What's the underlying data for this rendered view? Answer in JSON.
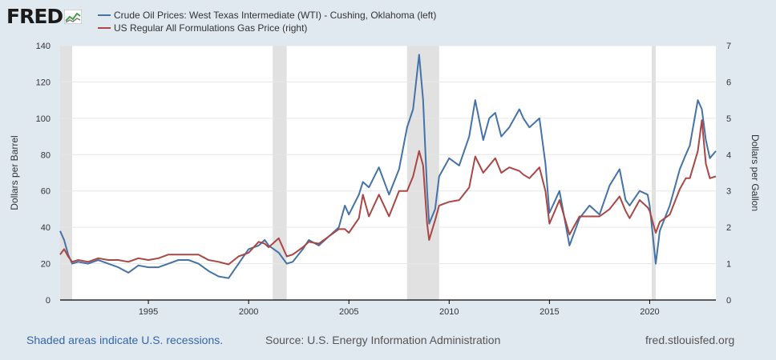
{
  "brand": {
    "name": "FRED"
  },
  "legend": [
    {
      "label": "Crude Oil Prices: West Texas Intermediate (WTI) - Cushing, Oklahoma (left)",
      "color": "#4572a7"
    },
    {
      "label": "US Regular All Formulations Gas Price (right)",
      "color": "#aa4643"
    }
  ],
  "footer": {
    "recession_note": "Shaded areas indicate U.S. recessions.",
    "source": "Source: U.S. Energy Information Administration",
    "site": "fred.stlouisfed.org"
  },
  "chart_data": {
    "type": "line",
    "ylabel_left": "Dollars per Barrel",
    "ylabel_right": "Dollars per Gallon",
    "ylim_left": [
      0,
      140
    ],
    "ylim_right": [
      0,
      7
    ],
    "yticks_left": [
      0,
      20,
      40,
      60,
      80,
      100,
      120,
      140
    ],
    "yticks_right": [
      0,
      1,
      2,
      3,
      4,
      5,
      6,
      7
    ],
    "xlim": [
      1990.6,
      2023.3
    ],
    "xticks": [
      1995,
      2000,
      2005,
      2010,
      2015,
      2020
    ],
    "grid": true,
    "legend_position": "top-left",
    "recessions": [
      [
        1990.6,
        1991.2
      ],
      [
        2001.2,
        2001.9
      ],
      [
        2007.9,
        2009.5
      ],
      [
        2020.1,
        2020.3
      ]
    ],
    "series": [
      {
        "name": "Crude Oil Prices: West Texas Intermediate (WTI) - Cushing, Oklahoma (left)",
        "axis": "left",
        "color": "#4572a7",
        "x": [
          1990.6,
          1990.8,
          1991.0,
          1991.2,
          1991.5,
          1992.0,
          1992.5,
          1993.0,
          1993.5,
          1994.0,
          1994.5,
          1995.0,
          1995.5,
          1996.0,
          1996.5,
          1997.0,
          1997.5,
          1998.0,
          1998.5,
          1999.0,
          1999.5,
          2000.0,
          2000.5,
          2000.8,
          2001.0,
          2001.5,
          2001.9,
          2002.2,
          2002.7,
          2003.0,
          2003.5,
          2004.0,
          2004.5,
          2004.8,
          2005.0,
          2005.5,
          2005.7,
          2006.0,
          2006.5,
          2007.0,
          2007.5,
          2007.9,
          2008.2,
          2008.5,
          2008.7,
          2008.9,
          2009.0,
          2009.3,
          2009.5,
          2010.0,
          2010.5,
          2011.0,
          2011.3,
          2011.7,
          2012.0,
          2012.3,
          2012.6,
          2013.0,
          2013.5,
          2013.7,
          2014.0,
          2014.5,
          2014.8,
          2015.0,
          2015.5,
          2016.0,
          2016.5,
          2017.0,
          2017.5,
          2018.0,
          2018.5,
          2018.8,
          2019.0,
          2019.5,
          2019.9,
          2020.0,
          2020.3,
          2020.5,
          2021.0,
          2021.5,
          2021.8,
          2022.0,
          2022.4,
          2022.6,
          2022.8,
          2023.0,
          2023.3
        ],
        "y": [
          38,
          33,
          25,
          20,
          21,
          20,
          22,
          20,
          18,
          15,
          19,
          18,
          18,
          20,
          22,
          22,
          20,
          16,
          13,
          12,
          20,
          28,
          30,
          33,
          30,
          26,
          20,
          21,
          28,
          33,
          30,
          35,
          40,
          52,
          47,
          58,
          65,
          62,
          73,
          58,
          72,
          95,
          105,
          135,
          110,
          60,
          42,
          50,
          68,
          78,
          74,
          90,
          110,
          88,
          100,
          103,
          90,
          95,
          105,
          100,
          95,
          100,
          75,
          48,
          60,
          30,
          45,
          52,
          47,
          63,
          72,
          55,
          52,
          60,
          58,
          52,
          20,
          38,
          52,
          72,
          80,
          85,
          110,
          105,
          88,
          78,
          82
        ]
      },
      {
        "name": "US Regular All Formulations Gas Price (right)",
        "axis": "right",
        "color": "#aa4643",
        "x": [
          1990.6,
          1990.8,
          1991.0,
          1991.2,
          1991.5,
          1992.0,
          1992.5,
          1993.0,
          1993.5,
          1994.0,
          1994.5,
          1995.0,
          1995.5,
          1996.0,
          1996.5,
          1997.0,
          1997.5,
          1998.0,
          1998.5,
          1999.0,
          1999.5,
          2000.0,
          2000.5,
          2000.8,
          2001.0,
          2001.5,
          2001.9,
          2002.2,
          2002.7,
          2003.0,
          2003.5,
          2004.0,
          2004.5,
          2004.8,
          2005.0,
          2005.5,
          2005.7,
          2006.0,
          2006.5,
          2007.0,
          2007.5,
          2007.9,
          2008.2,
          2008.5,
          2008.7,
          2008.9,
          2009.0,
          2009.3,
          2009.5,
          2010.0,
          2010.5,
          2011.0,
          2011.3,
          2011.7,
          2012.0,
          2012.3,
          2012.6,
          2013.0,
          2013.5,
          2013.7,
          2014.0,
          2014.5,
          2014.8,
          2015.0,
          2015.5,
          2016.0,
          2016.5,
          2017.0,
          2017.5,
          2018.0,
          2018.5,
          2018.8,
          2019.0,
          2019.5,
          2019.9,
          2020.0,
          2020.3,
          2020.5,
          2021.0,
          2021.5,
          2021.8,
          2022.0,
          2022.4,
          2022.6,
          2022.8,
          2023.0,
          2023.3
        ],
        "y": [
          1.25,
          1.4,
          1.2,
          1.05,
          1.1,
          1.05,
          1.15,
          1.1,
          1.1,
          1.05,
          1.15,
          1.1,
          1.15,
          1.25,
          1.25,
          1.25,
          1.25,
          1.1,
          1.05,
          0.98,
          1.2,
          1.3,
          1.6,
          1.55,
          1.45,
          1.7,
          1.2,
          1.25,
          1.45,
          1.6,
          1.55,
          1.75,
          1.95,
          1.95,
          1.85,
          2.25,
          2.9,
          2.3,
          2.9,
          2.3,
          3.0,
          3.0,
          3.4,
          4.1,
          3.7,
          2.1,
          1.65,
          2.2,
          2.6,
          2.7,
          2.75,
          3.1,
          3.95,
          3.5,
          3.7,
          3.9,
          3.5,
          3.65,
          3.55,
          3.45,
          3.35,
          3.65,
          3.0,
          2.1,
          2.75,
          1.8,
          2.3,
          2.3,
          2.3,
          2.5,
          2.85,
          2.45,
          2.25,
          2.75,
          2.55,
          2.45,
          1.85,
          2.15,
          2.35,
          3.05,
          3.35,
          3.35,
          4.1,
          4.95,
          3.75,
          3.35,
          3.4
        ]
      }
    ]
  }
}
